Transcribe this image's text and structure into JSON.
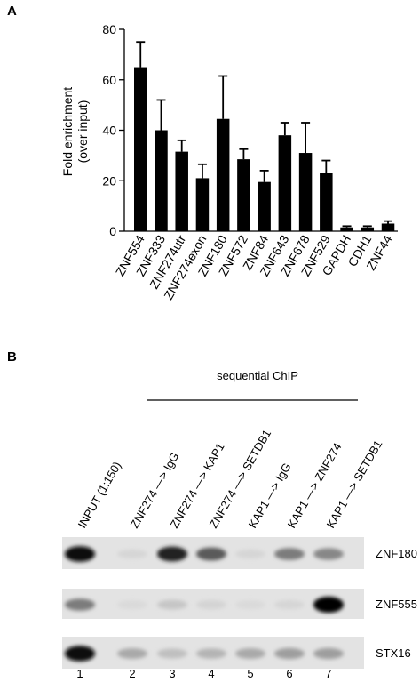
{
  "figure": {
    "panel_a_label": "A",
    "panel_b_label": "B"
  },
  "chart_data": {
    "type": "bar",
    "title": "",
    "ylabel_line1": "Fold enrichment",
    "ylabel_line2": "(over input)",
    "xlabel": "",
    "ylim": [
      0,
      80
    ],
    "yticks": [
      0,
      20,
      40,
      60,
      80
    ],
    "categories": [
      "ZNF554",
      "ZNF333",
      "ZNF274utr",
      "ZNF274exon",
      "ZNF180",
      "ZNF572",
      "ZNF84",
      "ZNF643",
      "ZNF678",
      "ZNF529",
      "GAPDH",
      "CDH1",
      "ZNF44"
    ],
    "values": [
      65,
      40,
      31.5,
      21,
      44.5,
      28.5,
      19.5,
      38,
      31,
      23,
      1.5,
      1.5,
      3
    ],
    "error_upper": [
      75,
      52,
      36,
      26.5,
      61.5,
      32.5,
      24,
      43,
      43,
      28,
      2,
      2,
      4
    ],
    "bar_color": "#000000",
    "grid": false
  },
  "gel": {
    "header": "sequential ChIP",
    "lanes": [
      {
        "label": "INPUT (1:150)",
        "number": "1"
      },
      {
        "label": "ZNF274 —> IgG",
        "number": "2"
      },
      {
        "label": "ZNF274 —> KAP1",
        "number": "3"
      },
      {
        "label": "ZNF274 —> SETDB1",
        "number": "4"
      },
      {
        "label": "KAP1 —> IgG",
        "number": "5"
      },
      {
        "label": "KAP1 —> ZNF274",
        "number": "6"
      },
      {
        "label": "KAP1 —> SETDB1",
        "number": "7"
      }
    ],
    "rows": [
      {
        "name": "ZNF180",
        "intensities": [
          0.95,
          0.05,
          0.85,
          0.6,
          0.05,
          0.45,
          0.4
        ]
      },
      {
        "name": "ZNF555",
        "intensities": [
          0.45,
          0.03,
          0.12,
          0.06,
          0.03,
          0.05,
          1.0
        ]
      },
      {
        "name": "STX16",
        "intensities": [
          0.95,
          0.25,
          0.15,
          0.2,
          0.25,
          0.3,
          0.3
        ]
      }
    ]
  }
}
